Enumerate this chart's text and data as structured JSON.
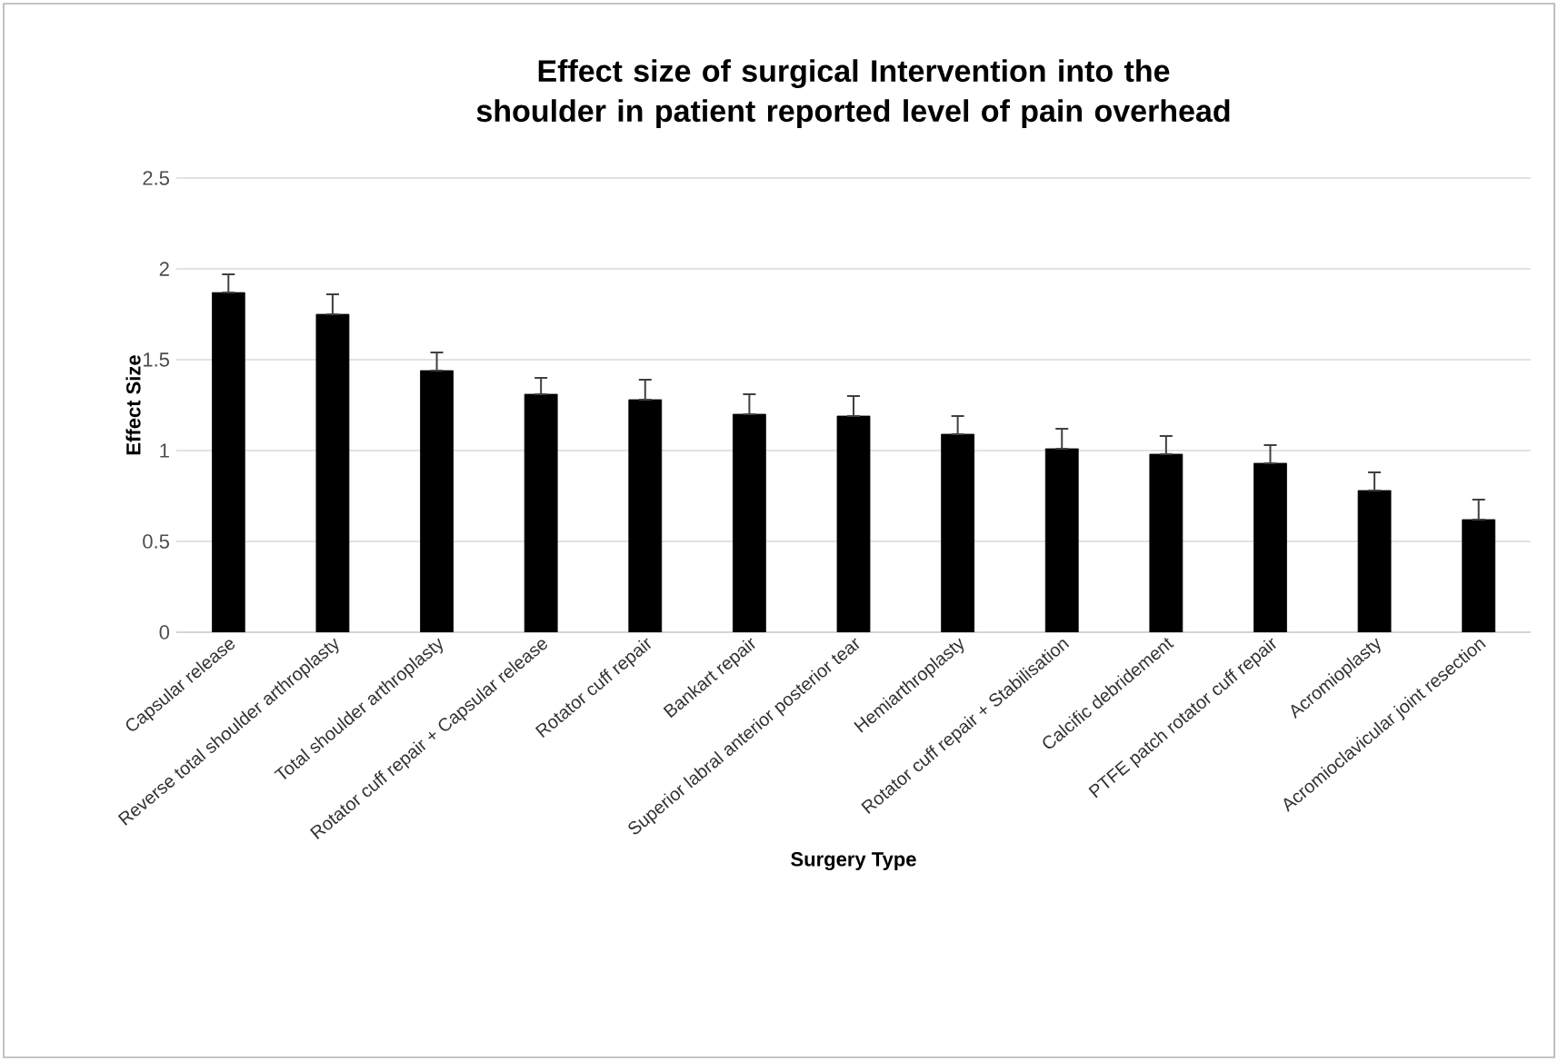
{
  "chart_data": {
    "type": "bar",
    "title": "Effect size of surgical Intervention into the shoulder in patient reported level of pain overhead",
    "xlabel": "Surgery Type",
    "ylabel": "Effect Size",
    "categories": [
      "Capsular release",
      "Reverse total shoulder arthroplasty",
      "Total shoulder arthroplasty",
      "Rotator cuff repair + Capsular release",
      "Rotator cuff repair",
      "Bankart repair",
      "Superior labral anterior posterior tear",
      "Hemiarthroplasty",
      "Rotator cuff repair + Stabilisation",
      "Calcific debridement",
      "PTFE patch rotator cuff repair",
      "Acromioplasty",
      "Acromioclavicular joint resection"
    ],
    "values": [
      1.87,
      1.75,
      1.44,
      1.31,
      1.28,
      1.2,
      1.19,
      1.09,
      1.01,
      0.98,
      0.93,
      0.78,
      0.62
    ],
    "errors": [
      [
        1.87,
        1.97
      ],
      [
        1.75,
        1.86
      ],
      [
        1.44,
        1.54
      ],
      [
        1.31,
        1.4
      ],
      [
        1.28,
        1.39
      ],
      [
        1.2,
        1.31
      ],
      [
        1.19,
        1.3
      ],
      [
        1.09,
        1.19
      ],
      [
        1.01,
        1.12
      ],
      [
        0.98,
        1.08
      ],
      [
        0.93,
        1.03
      ],
      [
        0.78,
        0.88
      ],
      [
        0.62,
        0.73
      ]
    ],
    "color": "#000000",
    "ylim": [
      0,
      2.5
    ],
    "yticks": [
      0,
      0.5,
      1,
      1.5,
      2,
      2.5
    ],
    "grid": "y"
  }
}
